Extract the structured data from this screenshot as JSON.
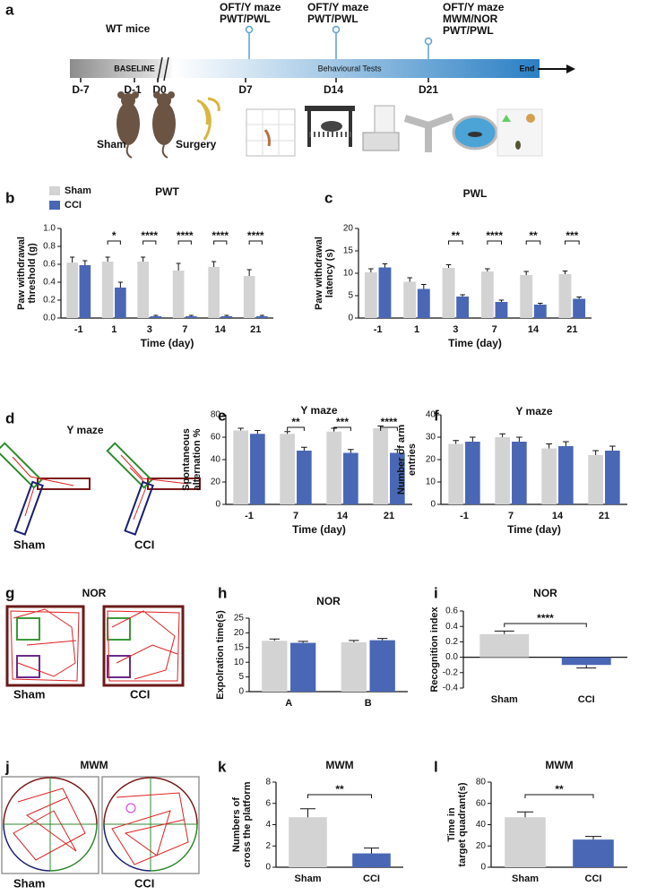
{
  "panel_labels": [
    "a",
    "b",
    "c",
    "d",
    "e",
    "f",
    "g",
    "h",
    "i",
    "j",
    "k",
    "l"
  ],
  "timeline": {
    "cohort": "WT mice",
    "phases": [
      "BASELINE",
      "Behavioural Tests"
    ],
    "end": "End",
    "days": [
      "D-7",
      "D-1",
      "D0",
      "D7",
      "D14",
      "D21"
    ],
    "tests": [
      [
        "OFT/Y maze",
        "PWT/PWL"
      ],
      [
        "OFT/Y maze",
        "PWT/PWL"
      ],
      [
        "OFT/Y maze",
        "MWM/NOR",
        "PWT/PWL"
      ]
    ],
    "groups": [
      "Sham",
      "Surgery"
    ]
  },
  "y_maze_tracks": {
    "title": "Y maze",
    "labels": [
      "Sham",
      "CCI"
    ]
  },
  "nor_tracks": {
    "title": "NOR",
    "labels": [
      "Sham",
      "CCI"
    ]
  },
  "mwm_tracks": {
    "title": "MWM",
    "labels": [
      "Sham",
      "CCI"
    ]
  },
  "chart_data": [
    {
      "type": "bar",
      "title": "PWT",
      "ylabel": [
        "Paw withdrawal",
        "threshold (g)"
      ],
      "xlabel": "Time (day)",
      "categories": [
        "-1",
        "1",
        "3",
        "7",
        "14",
        "21"
      ],
      "series": [
        {
          "name": "Sham",
          "color": "#d3d3d3",
          "values": [
            0.62,
            0.63,
            0.63,
            0.53,
            0.57,
            0.47
          ],
          "errors": [
            0.06,
            0.05,
            0.05,
            0.08,
            0.06,
            0.07
          ]
        },
        {
          "name": "CCI",
          "color": "#4a67b6",
          "values": [
            0.59,
            0.34,
            0.02,
            0.02,
            0.02,
            0.02
          ],
          "errors": [
            0.05,
            0.06,
            0.01,
            0.01,
            0.01,
            0.01
          ]
        }
      ],
      "significance": [
        null,
        "*",
        "****",
        "****",
        "****",
        "****"
      ],
      "legend": "top-left",
      "ylim": [
        0,
        1
      ],
      "yticks": [
        {
          "value": 0,
          "label": "0.0"
        },
        0.2,
        0.4,
        0.6,
        0.8,
        {
          "value": 1,
          "label": "1.0"
        }
      ]
    },
    {
      "type": "bar",
      "title": "PWL",
      "ylabel": [
        "Paw withdrawal",
        "latency (s)"
      ],
      "xlabel": "Time (day)",
      "categories": [
        "-1",
        "1",
        "3",
        "7",
        "14",
        "21"
      ],
      "series": [
        {
          "color": "#d3d3d3",
          "values": [
            10.2,
            8.1,
            11.2,
            10.4,
            9.6,
            9.8
          ],
          "errors": [
            0.8,
            0.9,
            0.7,
            0.6,
            0.8,
            0.7
          ]
        },
        {
          "color": "#4a67b6",
          "values": [
            11.3,
            6.5,
            4.8,
            3.6,
            3.0,
            4.3
          ],
          "errors": [
            0.8,
            1.0,
            0.4,
            0.4,
            0.3,
            0.4
          ]
        }
      ],
      "significance": [
        null,
        null,
        "**",
        "****",
        "**",
        "***"
      ],
      "ylim": [
        0,
        20
      ],
      "yticks": [
        0,
        5,
        10,
        15,
        20
      ]
    },
    {
      "type": "bar",
      "title": "Y maze",
      "ylabel": [
        "Spontaneous",
        "alternation %"
      ],
      "xlabel": "Time (day)",
      "categories": [
        "-1",
        "7",
        "14",
        "21"
      ],
      "series": [
        {
          "color": "#d3d3d3",
          "values": [
            66,
            63,
            65,
            68
          ],
          "errors": [
            2,
            2,
            3,
            2
          ]
        },
        {
          "color": "#4a67b6",
          "values": [
            63,
            48,
            46,
            46
          ],
          "errors": [
            3,
            3,
            3,
            3
          ]
        }
      ],
      "significance": [
        null,
        "**",
        "***",
        "****"
      ],
      "ylim": [
        0,
        80
      ],
      "yticks": [
        0,
        20,
        40,
        60,
        80
      ]
    },
    {
      "type": "bar",
      "title": "Y maze",
      "ylabel": [
        "Number of arm",
        "entries"
      ],
      "xlabel": "Time (day)",
      "categories": [
        "-1",
        "7",
        "14",
        "21"
      ],
      "series": [
        {
          "color": "#d3d3d3",
          "values": [
            27,
            30,
            25,
            22
          ],
          "errors": [
            1.5,
            1.5,
            2,
            2
          ]
        },
        {
          "color": "#4a67b6",
          "values": [
            28,
            28,
            26,
            24
          ],
          "errors": [
            2,
            2,
            2,
            2
          ]
        }
      ],
      "ylim": [
        0,
        40
      ],
      "yticks": [
        0,
        10,
        20,
        30,
        40
      ]
    },
    {
      "type": "bar",
      "title": "NOR",
      "ylabel": [
        "Expolration time(s)"
      ],
      "categories": [
        "A",
        "B"
      ],
      "series": [
        {
          "color": "#d3d3d3",
          "values": [
            17.3,
            16.8
          ],
          "errors": [
            0.6,
            0.6
          ]
        },
        {
          "color": "#4a67b6",
          "values": [
            16.6,
            17.5
          ],
          "errors": [
            0.5,
            0.6
          ]
        }
      ],
      "ylim": [
        0,
        25
      ],
      "yticks": [
        0,
        5,
        10,
        15,
        20,
        25
      ]
    },
    {
      "type": "bar",
      "title": "NOR",
      "ylabel": [
        "Recognition index"
      ],
      "categories": [
        "Sham",
        "CCI"
      ],
      "values": [
        0.3,
        -0.1
      ],
      "errors": [
        0.04,
        0.04
      ],
      "colors": [
        "#d3d3d3",
        "#4a67b6"
      ],
      "significance": "****",
      "ylim": [
        -0.4,
        0.6
      ],
      "yticks": [
        -0.4,
        -0.2,
        {
          "value": 0,
          "label": "0.0"
        },
        0.2,
        0.4,
        0.6
      ]
    },
    {
      "type": "bar",
      "title": "MWM",
      "ylabel": [
        "Numbers of",
        "cross the platform"
      ],
      "categories": [
        "Sham",
        "CCI"
      ],
      "values": [
        4.7,
        1.3
      ],
      "errors": [
        0.8,
        0.5
      ],
      "colors": [
        "#d3d3d3",
        "#4a67b6"
      ],
      "significance": "**",
      "ylim": [
        0,
        8
      ],
      "yticks": [
        0,
        2,
        4,
        6,
        8
      ]
    },
    {
      "type": "bar",
      "title": "MWM",
      "ylabel": [
        "Time in",
        "target quadrant(s)"
      ],
      "categories": [
        "Sham",
        "CCI"
      ],
      "values": [
        47,
        26
      ],
      "errors": [
        5,
        3
      ],
      "colors": [
        "#d3d3d3",
        "#4a67b6"
      ],
      "significance": "**",
      "ylim": [
        0,
        80
      ],
      "yticks": [
        0,
        20,
        40,
        60,
        80
      ]
    }
  ]
}
